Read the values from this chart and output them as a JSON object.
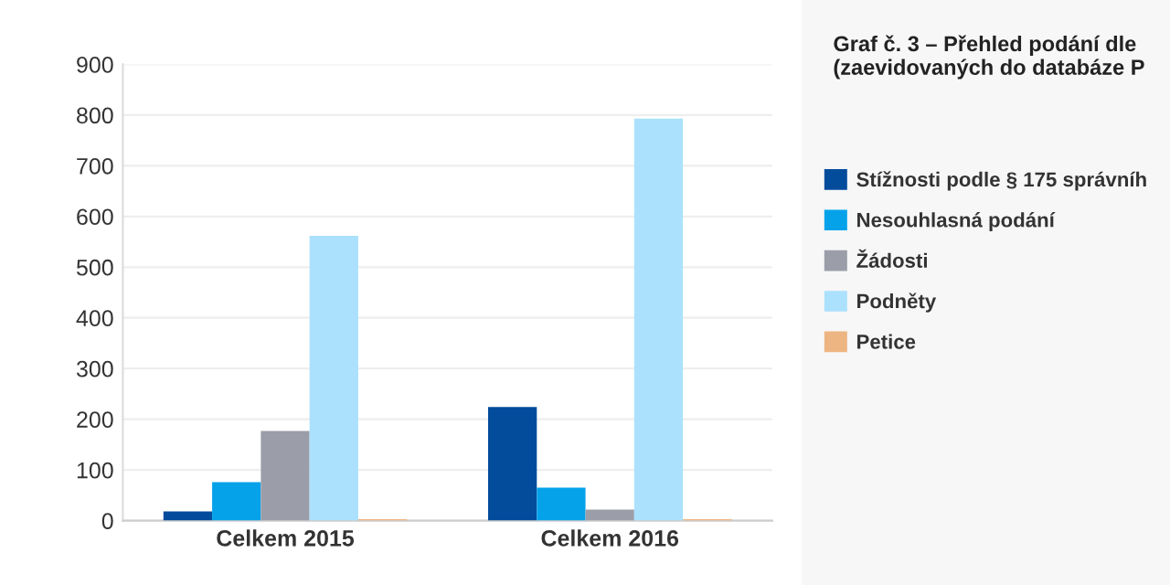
{
  "chart_data": {
    "type": "bar",
    "title": "Graf č. 3 – Přehled podání dle\n(zaevidovaných do databáze P",
    "categories": [
      "Celkem 2015",
      "Celkem 2016"
    ],
    "series": [
      {
        "name": "Stížnosti podle § 175 správníh",
        "color": "#034c9c",
        "values": [
          18,
          224
        ]
      },
      {
        "name": "Nesouhlasná podání",
        "color": "#05a2ea",
        "values": [
          76,
          65
        ]
      },
      {
        "name": "Žádosti",
        "color": "#9b9ea8",
        "values": [
          177,
          22
        ]
      },
      {
        "name": "Podněty",
        "color": "#abe1fc",
        "values": [
          562,
          793
        ]
      },
      {
        "name": "Petice",
        "color": "#edb582",
        "values": [
          3,
          3
        ]
      }
    ],
    "ylim": [
      0,
      900
    ],
    "yticks": [
      0,
      100,
      200,
      300,
      400,
      500,
      600,
      700,
      800,
      900
    ],
    "grid": "y",
    "legend": "right"
  }
}
